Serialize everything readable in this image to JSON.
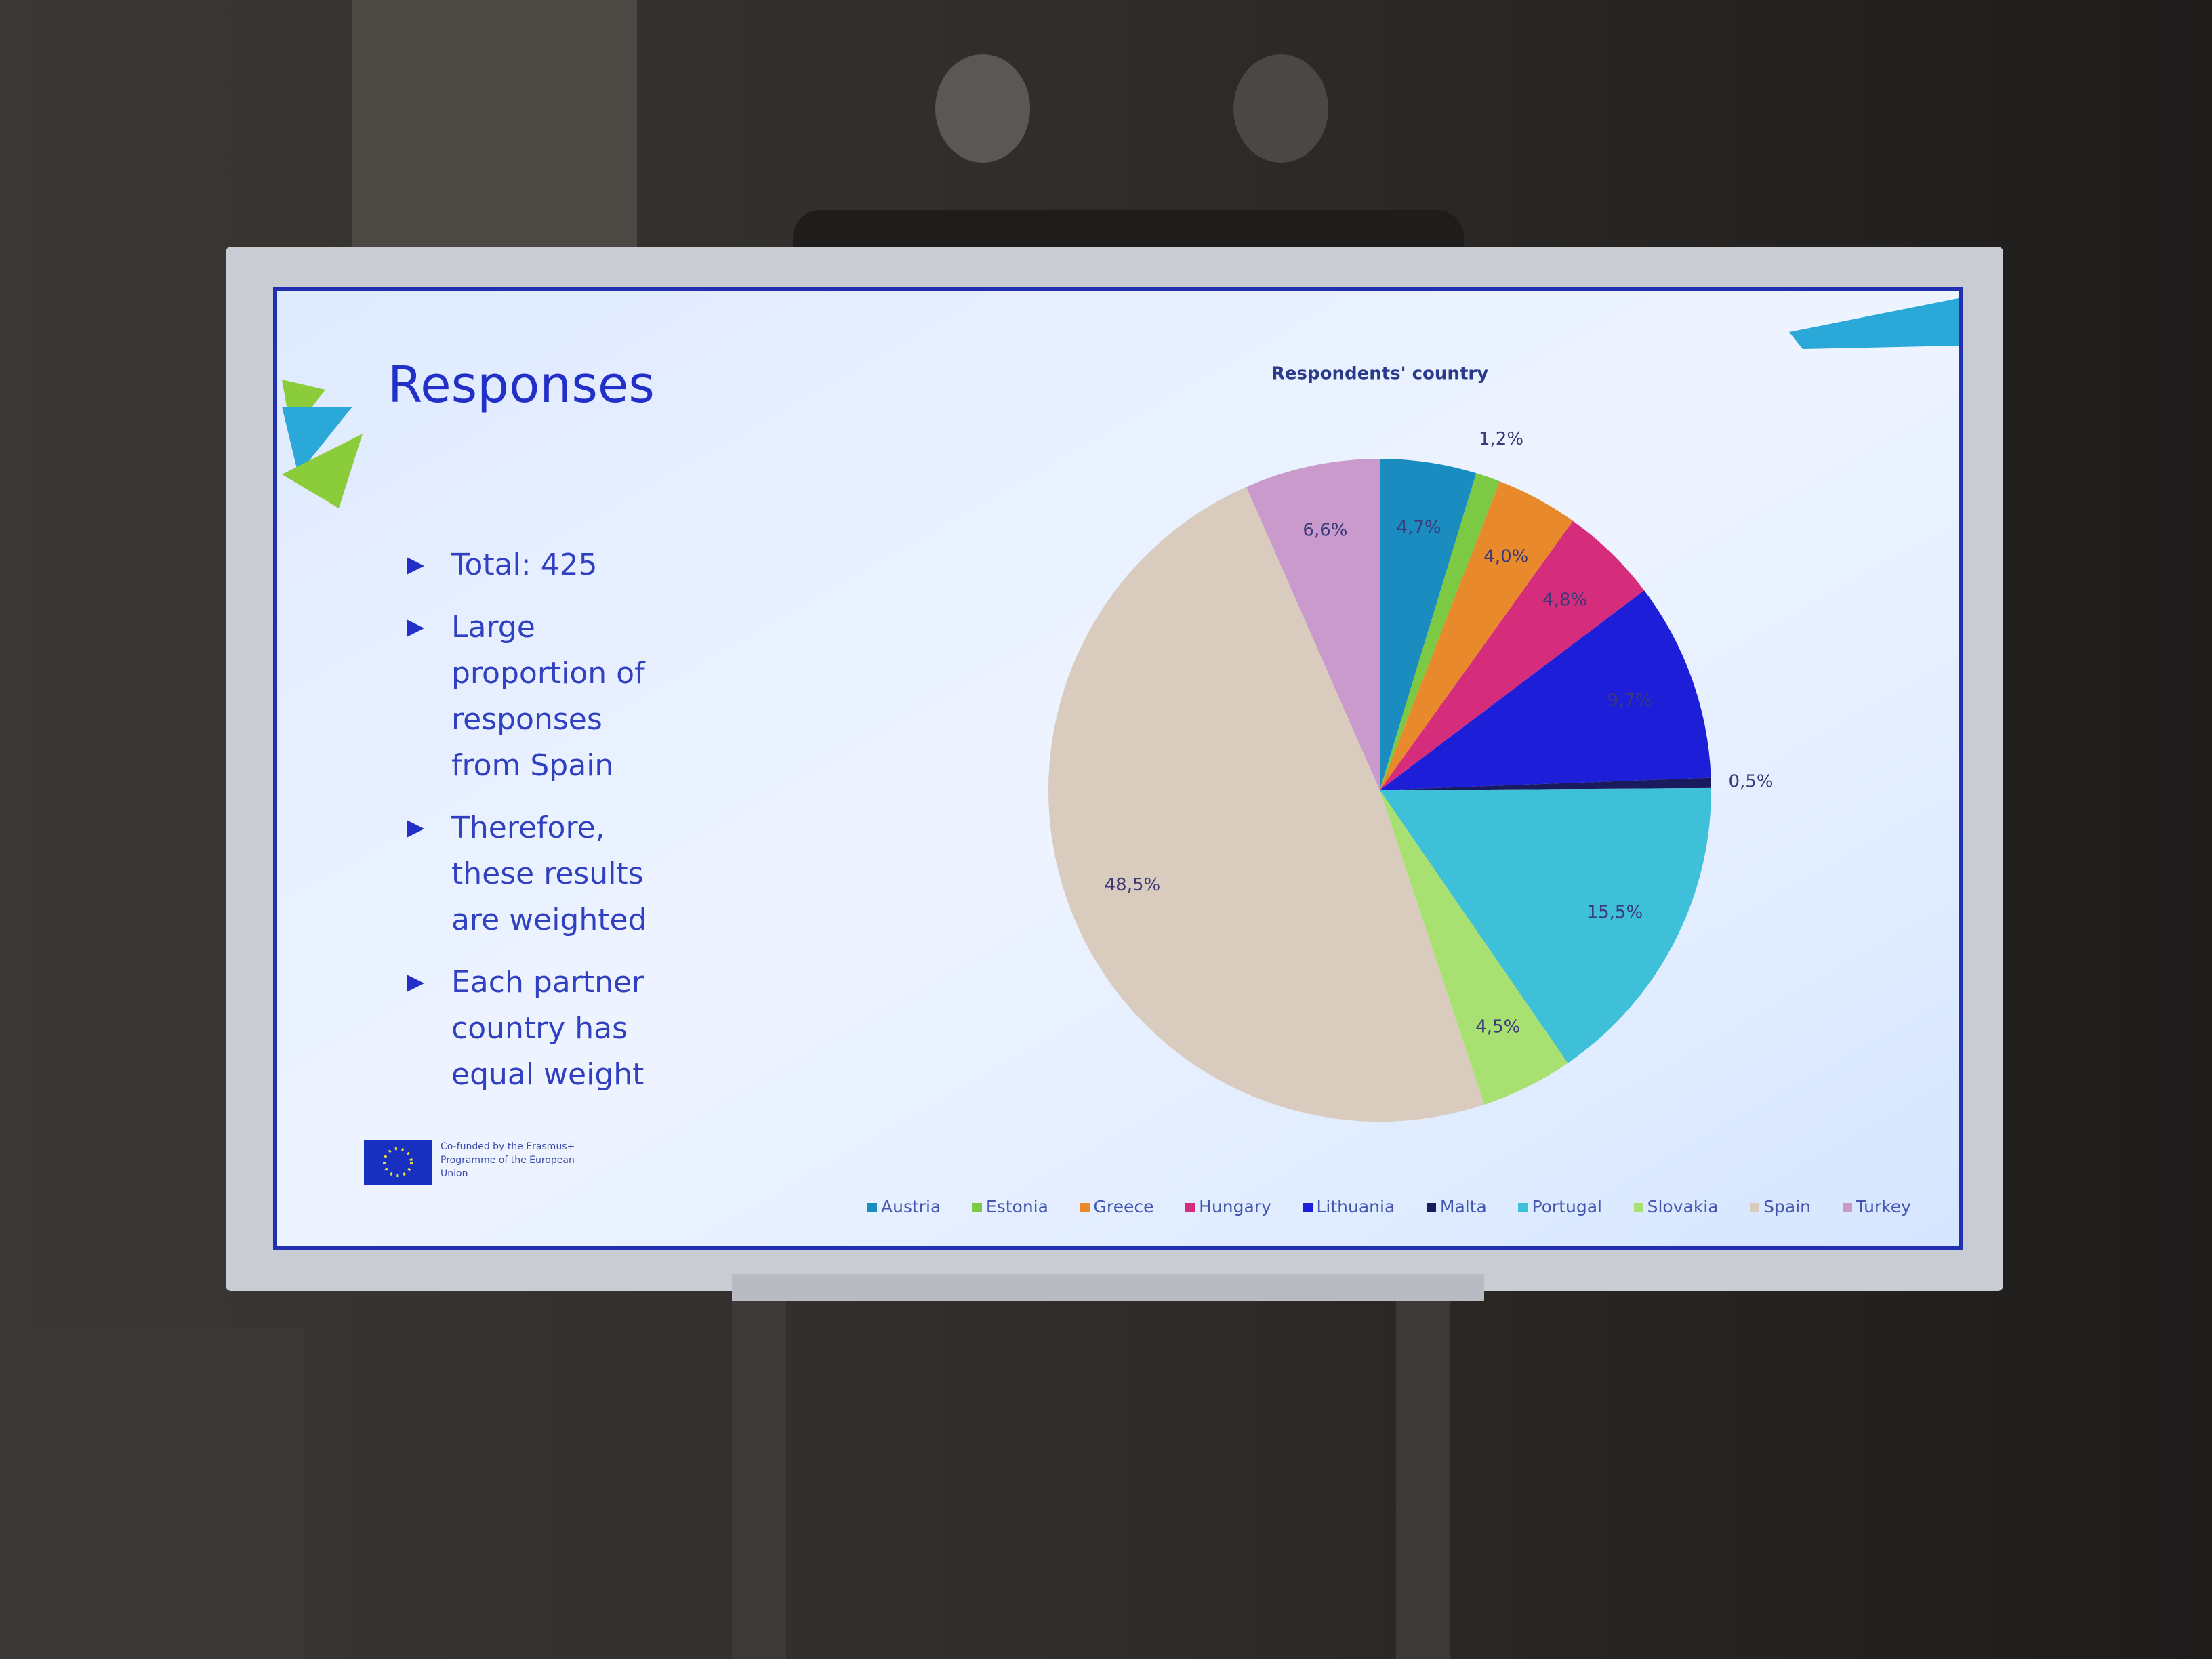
{
  "slide": {
    "title": "Responses",
    "bullets": [
      "Total: 425",
      "Large proportion of responses from Spain",
      "Therefore, these results are weighted",
      "Each partner country has equal weight"
    ],
    "logo_text": "Co-funded by the Erasmus+ Programme of the European Union"
  },
  "chart_data": {
    "type": "pie",
    "title": "Respondents' country",
    "categories": [
      "Austria",
      "Estonia",
      "Greece",
      "Hungary",
      "Lithuania",
      "Malta",
      "Portugal",
      "Slovakia",
      "Spain",
      "Turkey"
    ],
    "values": [
      4.7,
      1.2,
      4.0,
      4.8,
      9.7,
      0.5,
      15.5,
      4.5,
      48.5,
      6.6
    ],
    "value_labels": [
      "4,7%",
      "1,2%",
      "4,0%",
      "4,8%",
      "9,7%",
      "0,5%",
      "15,5%",
      "4,5%",
      "48,5%",
      "6,6%"
    ],
    "colors": [
      "#1b8cc0",
      "#7cc943",
      "#e8892b",
      "#d52c7c",
      "#1c1ed8",
      "#1a1a5e",
      "#3dc0d8",
      "#a9e072",
      "#d9cbbd",
      "#c99acb"
    ],
    "legend": "bottom"
  }
}
